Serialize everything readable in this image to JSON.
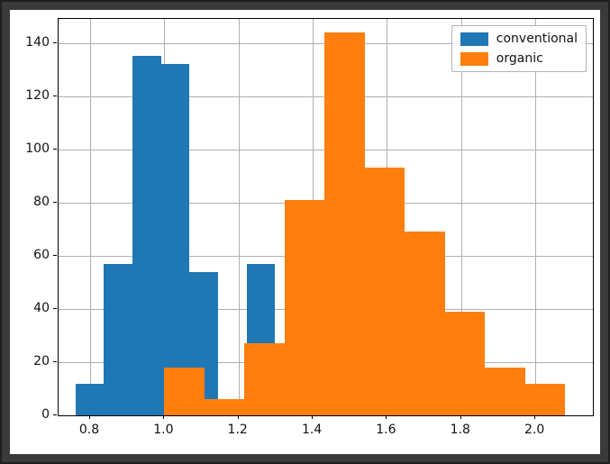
{
  "chart_data": {
    "type": "bar",
    "subtype": "histogram",
    "title": "",
    "xlabel": "",
    "ylabel": "",
    "grid": true,
    "legend_position": "upper right",
    "xlim": [
      0.715,
      2.155
    ],
    "ylim": [
      0,
      149
    ],
    "xticks": [
      0.8,
      1.0,
      1.2,
      1.4,
      1.6,
      1.8,
      2.0
    ],
    "xtick_labels": [
      "0.8",
      "1.0",
      "1.2",
      "1.4",
      "1.6",
      "1.8",
      "2.0"
    ],
    "yticks": [
      0,
      20,
      40,
      60,
      80,
      100,
      120,
      140
    ],
    "ytick_labels": [
      "0",
      "20",
      "40",
      "60",
      "80",
      "100",
      "120",
      "140"
    ],
    "series": [
      {
        "name": "conventional",
        "color": "#1f77b4",
        "bin_edges": [
          0.76,
          0.837,
          0.914,
          0.991,
          1.068,
          1.145,
          1.222,
          1.299
        ],
        "counts": [
          12,
          57,
          135,
          132,
          54,
          6,
          57
        ]
      },
      {
        "name": "organic",
        "color": "#ff7f0e",
        "bin_edges": [
          1.0,
          1.108,
          1.216,
          1.324,
          1.432,
          1.54,
          1.648,
          1.756,
          1.864,
          1.972,
          2.08
        ],
        "counts": [
          18,
          6,
          27,
          81,
          144,
          93,
          69,
          39,
          18,
          12
        ]
      }
    ],
    "legend": [
      "conventional",
      "organic"
    ]
  },
  "figure": {
    "background": "#ffffff",
    "frame_color": "#3a3a3a"
  }
}
